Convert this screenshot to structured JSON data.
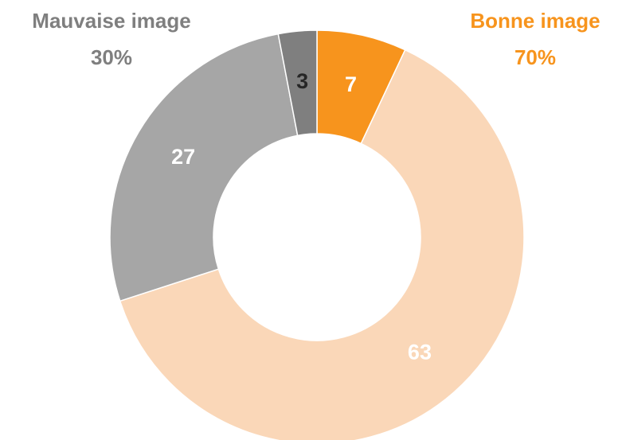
{
  "chart_data": {
    "type": "donut",
    "values": [
      7,
      63,
      27,
      3
    ],
    "colors": [
      "#f7941d",
      "#fad7b8",
      "#a6a6a6",
      "#7f7f7f"
    ],
    "label_colors": [
      "#ffffff",
      "#ffffff",
      "#ffffff",
      "#262626"
    ],
    "groups": [
      {
        "name": "Bonne image",
        "value": 70,
        "value_label": "70%",
        "color": "#f7941d"
      },
      {
        "name": "Mauvaise image",
        "value": 30,
        "value_label": "30%",
        "color": "#7f7f7f"
      }
    ]
  }
}
